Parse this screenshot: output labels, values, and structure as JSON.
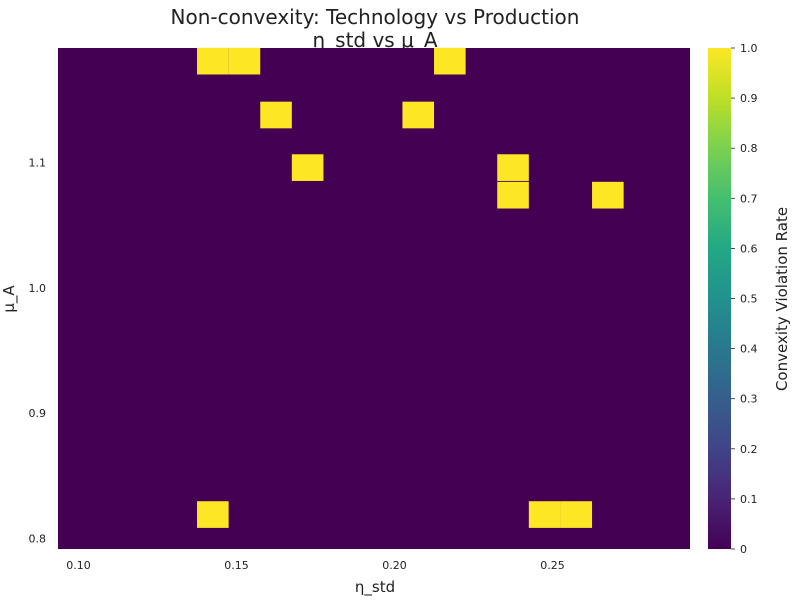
{
  "chart_data": {
    "type": "heatmap",
    "title": "Non-convexity: Technology vs Production",
    "subtitle": "η_std vs μ_A",
    "xlabel": "η_std",
    "ylabel": "μ_A",
    "colorbar_label": "Convexity Violation Rate",
    "colormap": "viridis",
    "x_ticks": [
      "0.10",
      "0.15",
      "0.20",
      "0.25"
    ],
    "y_ticks": [
      "0.8",
      "0.9",
      "1.0",
      "1.1"
    ],
    "colorbar_ticks": [
      "0",
      "0.1",
      "0.2",
      "0.3",
      "0.4",
      "0.5",
      "0.6",
      "0.7",
      "0.8",
      "0.9",
      "1.0"
    ],
    "xlim": [
      0.0935,
      0.2935
    ],
    "ylim": [
      0.7915,
      1.1915
    ],
    "clim": [
      0,
      1
    ],
    "cell_width": 0.01,
    "cell_height": 0.0213,
    "background_value": 0,
    "cells": [
      {
        "x": 0.1425,
        "y": 1.181,
        "value": 1
      },
      {
        "x": 0.1525,
        "y": 1.181,
        "value": 1
      },
      {
        "x": 0.2175,
        "y": 1.181,
        "value": 1
      },
      {
        "x": 0.1625,
        "y": 1.138,
        "value": 1
      },
      {
        "x": 0.2075,
        "y": 1.138,
        "value": 1
      },
      {
        "x": 0.1725,
        "y": 1.096,
        "value": 1
      },
      {
        "x": 0.2375,
        "y": 1.096,
        "value": 1
      },
      {
        "x": 0.2375,
        "y": 1.074,
        "value": 1
      },
      {
        "x": 0.2675,
        "y": 1.074,
        "value": 1
      },
      {
        "x": 0.1425,
        "y": 0.819,
        "value": 1
      },
      {
        "x": 0.2475,
        "y": 0.819,
        "value": 1
      },
      {
        "x": 0.2575,
        "y": 0.819,
        "value": 1
      }
    ]
  }
}
